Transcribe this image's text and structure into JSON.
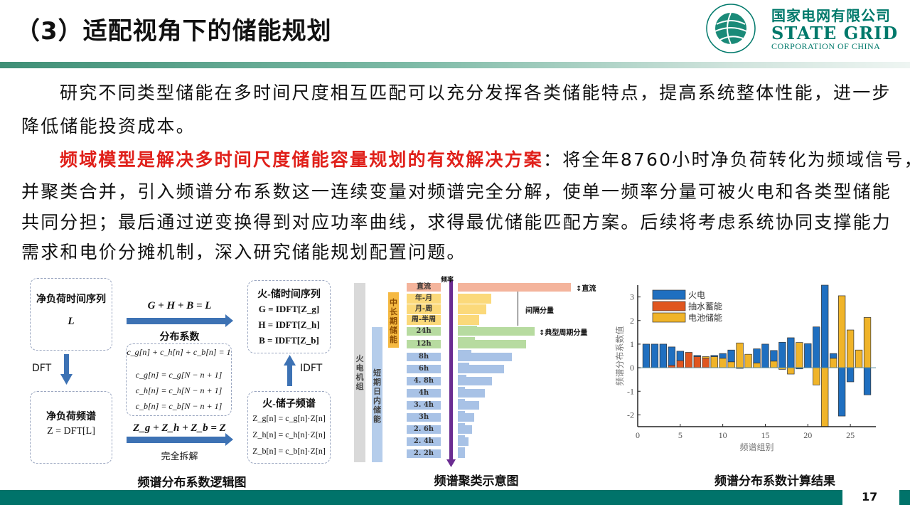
{
  "slide": {
    "title": "（3）适配视角下的储能规划",
    "page_number": "17"
  },
  "logo": {
    "cn": "国家电网有限公司",
    "en": "STATE GRID",
    "sub": "CORPORATION OF CHINA",
    "ring_text": "国家电网公司 STATE GRID CORPORATION OF CHINA",
    "color": "#00796b"
  },
  "body": {
    "p1": [
      "研究不同类型储能在多时间尺度相互匹配可以充分发挥各类储能特点，提高系统整体性能，进一步",
      "降低储能投资成本。"
    ],
    "p2_highlight": "频域模型是解决多时间尺度储能容量规划的有效解决方案",
    "p2_first_rest": "：将全年8760小时净负荷转化为频域信号，",
    "p2": [
      "并聚类合并，引入频谱分布系数这一连续变量对频谱完全分解，使单一频率分量可被火电和各类型储能",
      "共同分担；最后通过逆变换得到对应功率曲线，求得最优储能匹配方案。后续将考虑系统协同支撑能力",
      "需求和电价分摊机制，深入研究储能规划配置问题。"
    ]
  },
  "logic_diagram": {
    "caption": "频谱分布系数逻辑图",
    "box_load_series": {
      "title": "净负荷时间序列",
      "symbol": "L"
    },
    "dft": "DFT",
    "box_load_spectrum": {
      "title": "净负荷频谱",
      "formula": "Z = DFT[L]"
    },
    "top_formula": "G + H + B = L",
    "coef_label": "分布系数",
    "coef_box": [
      "c_g[n] + c_h[n] + c_b[n] = 1",
      "c_g[n] = c_g[N − n + 1]",
      "c_h[n] = c_h[N − n + 1]",
      "c_b[n] = c_b[N − n + 1]"
    ],
    "bottom_formula": "Z_g + Z_h + Z_b = Z",
    "decomp_label": "完全拆解",
    "box_series": {
      "title": "火-储时间序列",
      "lines": [
        "G = IDFT[Z_g]",
        "H = IDFT[Z_h]",
        "B = IDFT[Z_b]"
      ]
    },
    "idft": "IDFT",
    "box_subspectrum": {
      "title": "火-储子频谱",
      "lines": [
        "Z_g[n] = c_g[n]·Z[n]",
        "Z_h[n] = c_h[n]·Z[n]",
        "Z_b[n] = c_b[n]·Z[n]"
      ]
    }
  },
  "cluster_diagram": {
    "caption": "频谱聚类示意图",
    "axis_label": "频率",
    "groups": {
      "thermal": "火电机组",
      "short": "短期日内储能",
      "long": "中长期储能"
    },
    "rows": [
      "直流",
      "年-月",
      "月-周",
      "周-半周",
      "24h",
      "12h",
      "8h",
      "6h",
      "4. 8h",
      "4h",
      "3. 4h",
      "3h",
      "2. 6h",
      "2. 4h",
      "2. 2h"
    ],
    "annotations": {
      "dc": "直流",
      "interval": "间隔分量",
      "typical": "典型周期分量"
    },
    "colors": {
      "dc": "#f4b49c",
      "long": "#fbd97a",
      "typical": "#b7dba0",
      "short": "#a8c2e6",
      "axis": "#6a2c91",
      "thermal": "#d9d9d9",
      "long_group": "#f5b942"
    }
  },
  "chart_data": {
    "type": "bar",
    "stacked": true,
    "title": "",
    "xlabel": "频谱组别",
    "ylabel": "频谱分布系数值",
    "xlim": [
      0,
      28
    ],
    "ylim": [
      -2.5,
      3.5
    ],
    "xticks": [
      0,
      5,
      10,
      15,
      20,
      25
    ],
    "yticks": [
      -2,
      -1,
      0,
      1,
      2,
      3
    ],
    "legend_position": "top-left",
    "x": [
      1,
      2,
      3,
      4,
      5,
      6,
      7,
      8,
      9,
      10,
      11,
      12,
      13,
      14,
      15,
      16,
      17,
      18,
      19,
      20,
      21,
      22,
      23,
      24,
      25,
      26,
      27
    ],
    "series": [
      {
        "name": "火电",
        "color": "#1f6fc0",
        "values": [
          1.0,
          1.0,
          1.0,
          0.78,
          0.4,
          0,
          0.05,
          0,
          0.05,
          0.2,
          0.5,
          -0.03,
          0,
          0.6,
          1.0,
          0.45,
          1.08,
          1.27,
          -0.05,
          1.02,
          1.73,
          3.5,
          0.2,
          -2.05,
          -0.6,
          0,
          -1.15
        ]
      },
      {
        "name": "抽水蓄能",
        "color": "#e0561f",
        "values": [
          0,
          0,
          0,
          0.1,
          0.3,
          0.65,
          0.47,
          0.4,
          0,
          0,
          0,
          0,
          0,
          0,
          0,
          0,
          0,
          0,
          0,
          0,
          0,
          0,
          0,
          0,
          0,
          0,
          0
        ]
      },
      {
        "name": "电池储能",
        "color": "#f0b429",
        "values": [
          0,
          0,
          0,
          0,
          0,
          0,
          0,
          0.07,
          0.47,
          0.4,
          0.25,
          1.05,
          0.57,
          0.2,
          0,
          0.28,
          -0.07,
          -0.27,
          1.07,
          0,
          -0.73,
          -2.5,
          0.4,
          3.05,
          1.6,
          0.75,
          2.13
        ]
      }
    ],
    "caption": "频谱分布系数计算结果"
  }
}
